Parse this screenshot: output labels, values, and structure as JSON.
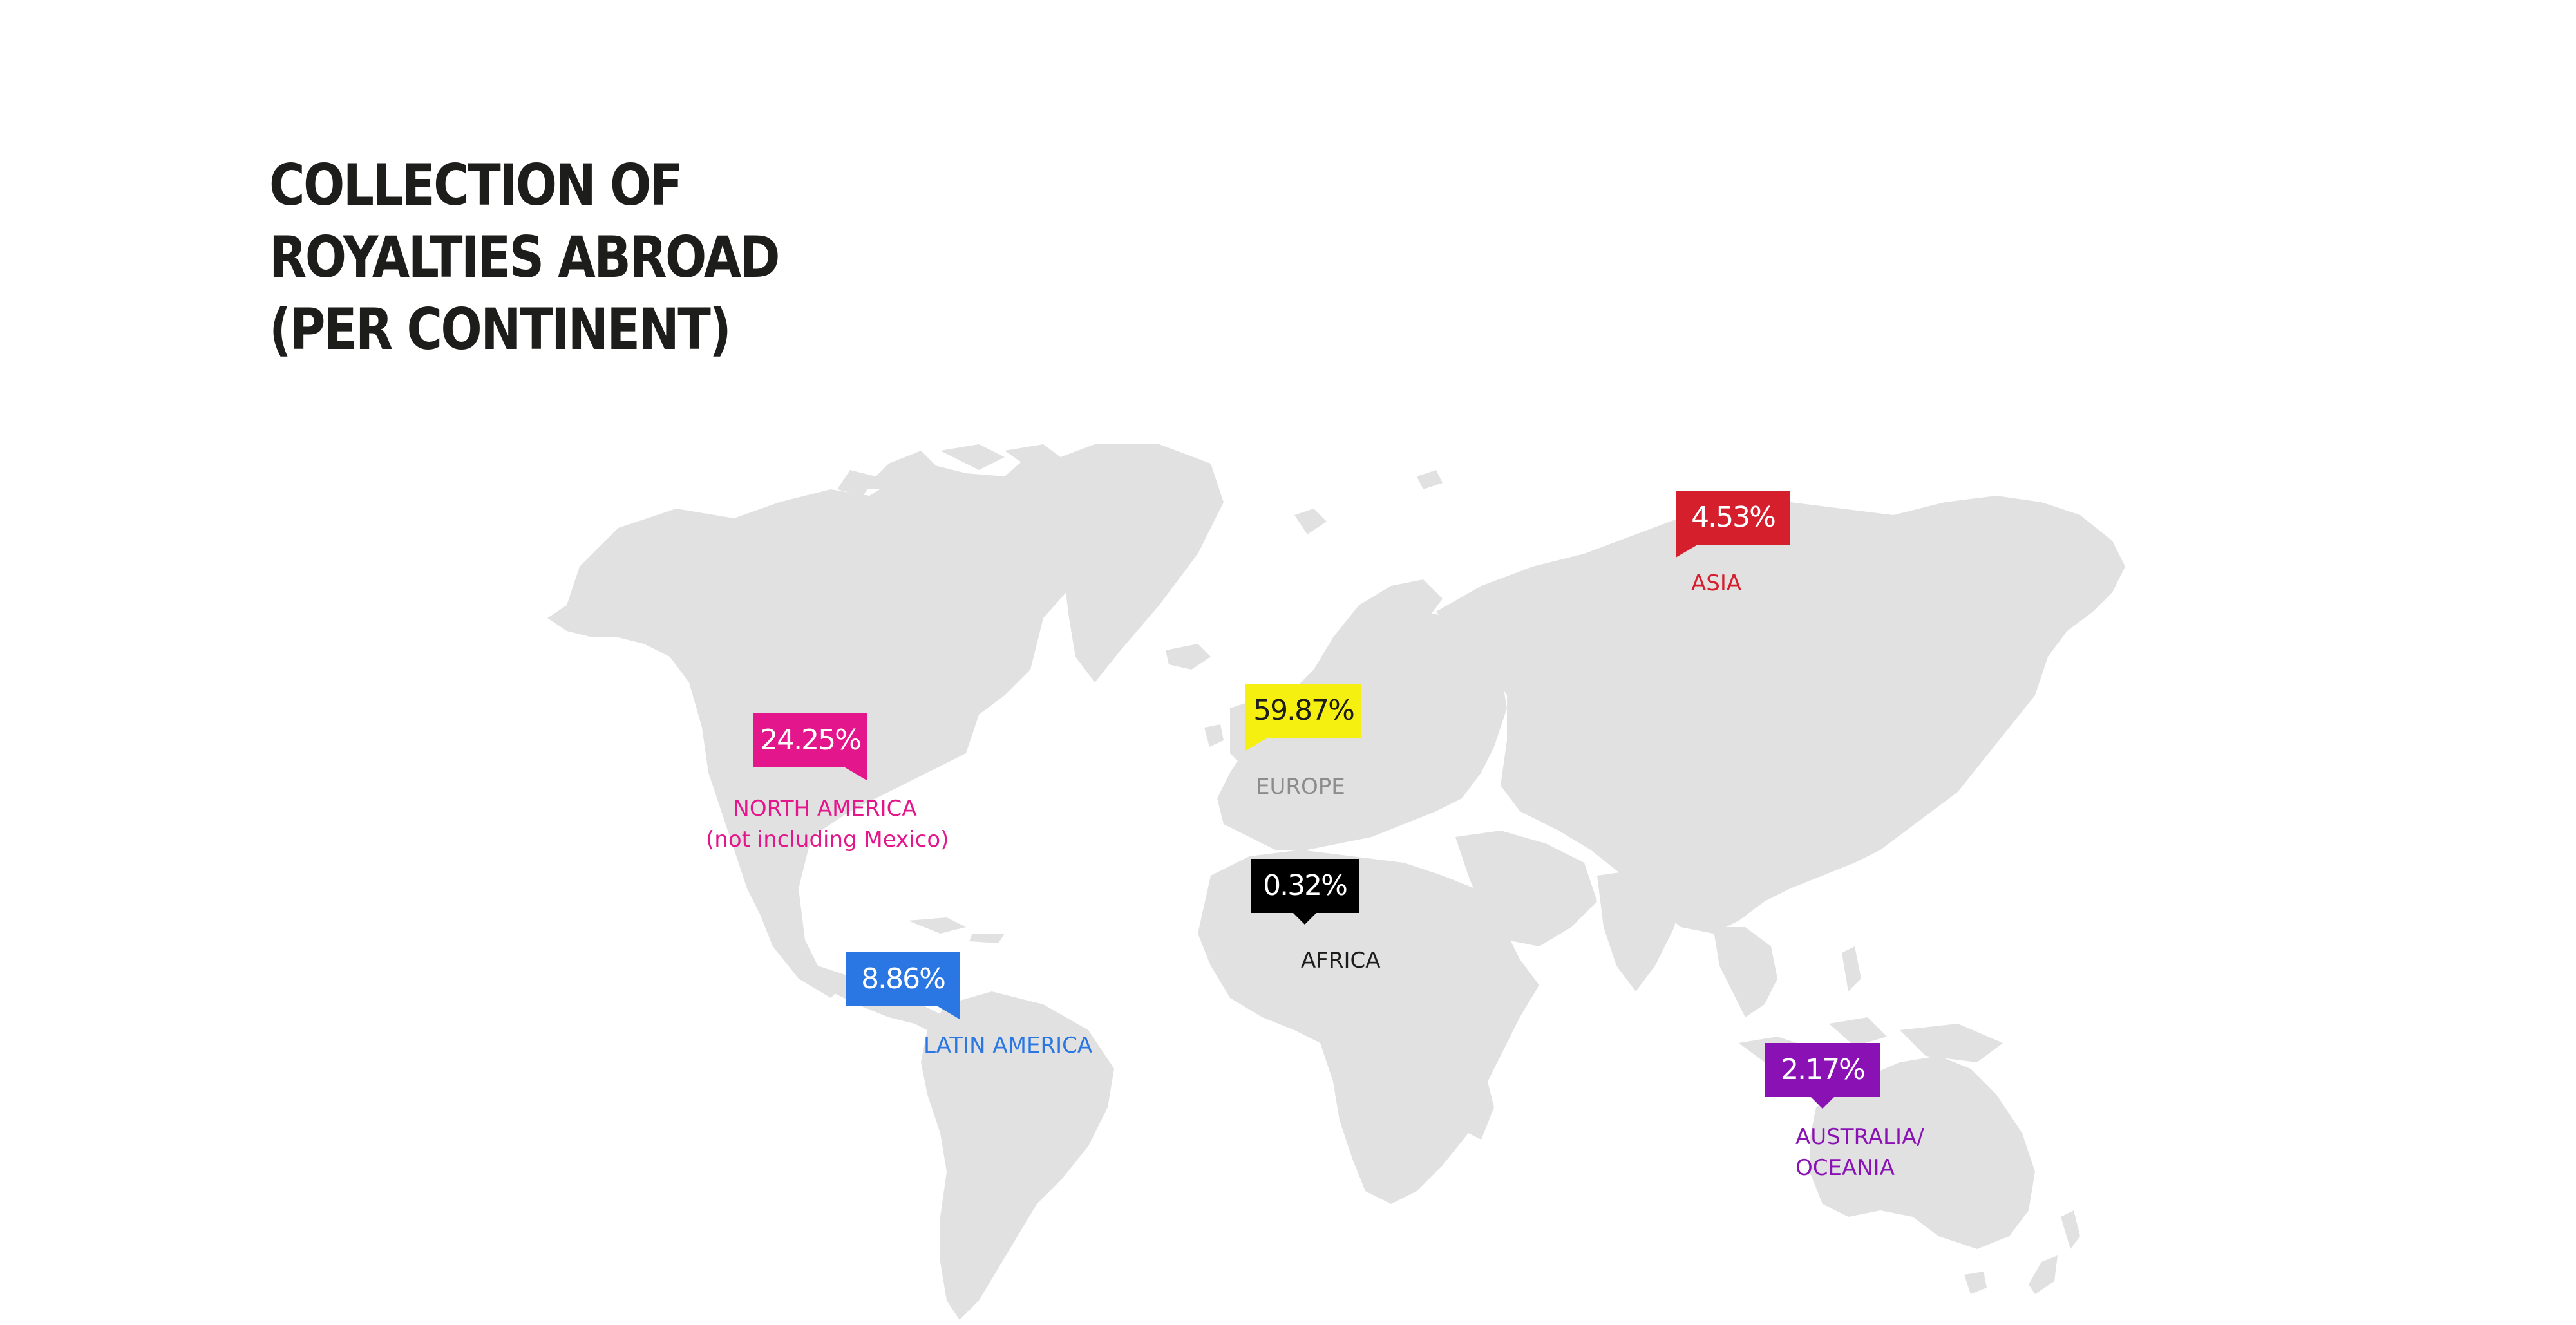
{
  "title": {
    "line1": "COLLECTION OF",
    "line2": "ROYALTIES ABROAD",
    "line3": "(PER CONTINENT)"
  },
  "regions": {
    "north_america": {
      "value": "24.25%",
      "label_line1": "NORTH AMERICA",
      "label_line2": "(not including Mexico)",
      "color": "#e4168b",
      "value_text_color": "#ffffff"
    },
    "latin_america": {
      "value": "8.86%",
      "label": "LATIN AMERICA",
      "color": "#2a77e3",
      "value_text_color": "#ffffff"
    },
    "europe": {
      "value": "59.87%",
      "label": "EUROPE",
      "color": "#f5f010",
      "label_color": "#8c8c8c",
      "value_text_color": "#1d1d1b"
    },
    "africa": {
      "value": "0.32%",
      "label": "AFRICA",
      "color": "#000000",
      "value_text_color": "#ffffff"
    },
    "asia": {
      "value": "4.53%",
      "label": "ASIA",
      "color": "#d61f2c",
      "value_text_color": "#ffffff"
    },
    "oceania": {
      "value": "2.17%",
      "label_line1": "AUSTRALIA/",
      "label_line2": "OCEANIA",
      "color": "#8a12b5",
      "value_text_color": "#ffffff"
    }
  },
  "map": {
    "land_color": "#e1e1e1"
  }
}
